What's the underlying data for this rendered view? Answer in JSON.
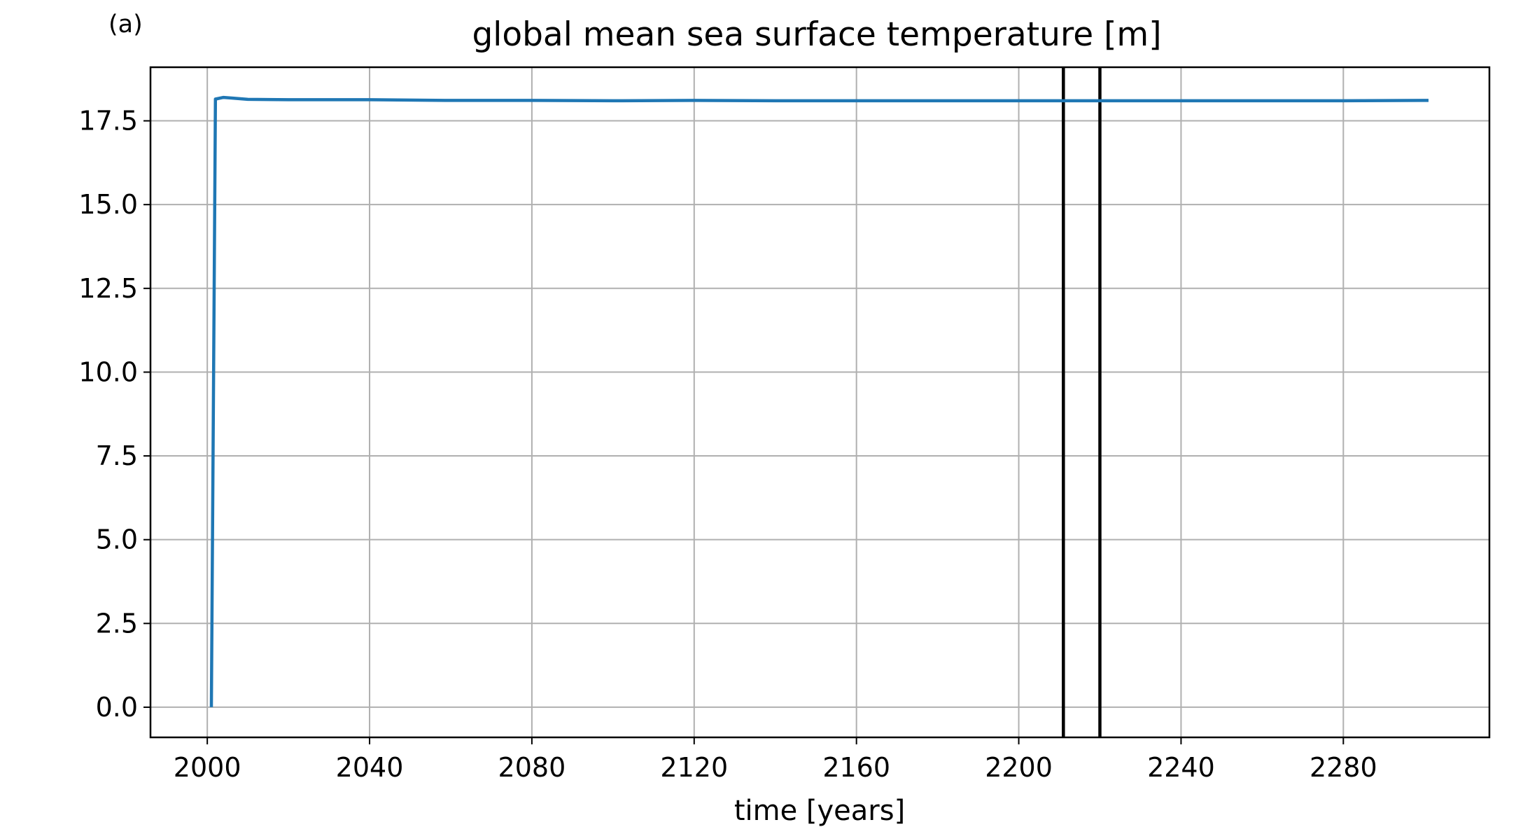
{
  "panel_label": "(a)",
  "chart_data": {
    "type": "line",
    "title": "global mean sea surface temperature [m]",
    "xlabel": "time [years]",
    "ylabel": "",
    "xlim": [
      1986,
      2316
    ],
    "ylim": [
      -0.9,
      19.1
    ],
    "xticks": [
      2000,
      2040,
      2080,
      2120,
      2160,
      2200,
      2240,
      2280
    ],
    "yticks": [
      0.0,
      2.5,
      5.0,
      7.5,
      10.0,
      12.5,
      15.0,
      17.5
    ],
    "grid": true,
    "series": [
      {
        "color": "#1f77b4",
        "x": [
          2001,
          2002,
          2004,
          2006,
          2010,
          2020,
          2040,
          2060,
          2080,
          2100,
          2120,
          2140,
          2160,
          2180,
          2200,
          2220,
          2240,
          2260,
          2280,
          2301
        ],
        "y": [
          0.0,
          18.15,
          18.2,
          18.18,
          18.14,
          18.13,
          18.13,
          18.11,
          18.11,
          18.1,
          18.11,
          18.1,
          18.1,
          18.1,
          18.1,
          18.1,
          18.1,
          18.1,
          18.1,
          18.11
        ]
      }
    ],
    "vlines": [
      {
        "x": 2211,
        "color": "#000000"
      },
      {
        "x": 2220,
        "color": "#000000"
      }
    ]
  }
}
